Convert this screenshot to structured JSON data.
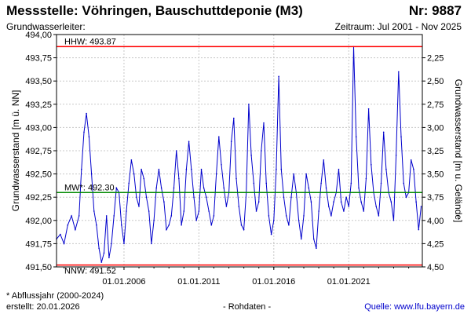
{
  "header": {
    "title": "Messstelle: Vöhringen, Bauschuttdeponie (M3)",
    "number": "Nr: 9887",
    "aquifer_label": "Grundwasserleiter:",
    "period": "Zeitraum: Jul 2001 - Nov 2025"
  },
  "footer": {
    "note": "* Abflussjahr (2000-2024)",
    "created": "erstellt:  20.01.2026",
    "raw": "- Rohdaten -",
    "source_prefix": "Quelle: ",
    "source_link": "www.lfu.bayern.de"
  },
  "colors": {
    "series": "#0000cc",
    "hhw": "#ff0000",
    "nnw": "#ff0000",
    "mw": "#008800",
    "grid": "#c8c8c8"
  },
  "chart_data": {
    "type": "line",
    "xlabel": "",
    "ylabel": "Grundwasserstand [m ü. NN]",
    "ylabel_right": "Grundwasserstand [m u. Gelände]",
    "xlim": [
      "2001-07-01",
      "2025-11-30"
    ],
    "ylim": [
      491.5,
      494.0
    ],
    "y_ticks": [
      "491,50",
      "491,75",
      "492,00",
      "492,25",
      "492,50",
      "492,75",
      "493,00",
      "493,25",
      "493,50",
      "493,75",
      "494,00"
    ],
    "y_ticks_right": [
      "4,50",
      "4,25",
      "4,00",
      "3,75",
      "3,50",
      "3,25",
      "3,00",
      "2,75",
      "2,50",
      "2,25"
    ],
    "x_ticks": [
      {
        "date": "2006-01-01",
        "label": "01.01.2006"
      },
      {
        "date": "2011-01-01",
        "label": "01.01.2011"
      },
      {
        "date": "2016-01-01",
        "label": "01.01.2016"
      },
      {
        "date": "2021-01-01",
        "label": "01.01.2021"
      }
    ],
    "grid": true,
    "reference_lines": [
      {
        "key": "hhw",
        "label": "HHW: 493.87",
        "value": 493.87
      },
      {
        "key": "mw",
        "label": "MW*: 492.30",
        "value": 492.3
      },
      {
        "key": "nnw",
        "label": "NNW: 491.52",
        "value": 491.52
      }
    ],
    "series": [
      {
        "x": [
          "2001-07",
          "2001-10",
          "2002-01",
          "2002-04",
          "2002-07",
          "2002-10",
          "2003-01",
          "2003-03",
          "2003-05",
          "2003-07",
          "2003-09",
          "2003-11",
          "2004-01",
          "2004-03",
          "2004-05",
          "2004-07",
          "2004-09",
          "2004-11",
          "2005-01",
          "2005-03",
          "2005-05",
          "2005-07",
          "2005-09",
          "2005-11",
          "2006-01",
          "2006-03",
          "2006-05",
          "2006-07",
          "2006-09",
          "2006-11",
          "2007-01",
          "2007-03",
          "2007-05",
          "2007-07",
          "2007-09",
          "2007-11",
          "2008-01",
          "2008-03",
          "2008-05",
          "2008-07",
          "2008-09",
          "2008-11",
          "2009-01",
          "2009-03",
          "2009-05",
          "2009-07",
          "2009-09",
          "2009-11",
          "2010-01",
          "2010-03",
          "2010-05",
          "2010-07",
          "2010-09",
          "2010-11",
          "2011-01",
          "2011-03",
          "2011-05",
          "2011-07",
          "2011-09",
          "2011-11",
          "2012-01",
          "2012-03",
          "2012-05",
          "2012-07",
          "2012-09",
          "2012-11",
          "2013-01",
          "2013-03",
          "2013-05",
          "2013-07",
          "2013-09",
          "2013-11",
          "2014-01",
          "2014-03",
          "2014-05",
          "2014-07",
          "2014-09",
          "2014-11",
          "2015-01",
          "2015-03",
          "2015-05",
          "2015-07",
          "2015-09",
          "2015-11",
          "2016-01",
          "2016-03",
          "2016-05",
          "2016-07",
          "2016-09",
          "2016-11",
          "2017-01",
          "2017-03",
          "2017-05",
          "2017-07",
          "2017-09",
          "2017-11",
          "2018-01",
          "2018-03",
          "2018-05",
          "2018-07",
          "2018-09",
          "2018-11",
          "2019-01",
          "2019-03",
          "2019-05",
          "2019-07",
          "2019-09",
          "2019-11",
          "2020-01",
          "2020-03",
          "2020-05",
          "2020-07",
          "2020-09",
          "2020-11",
          "2021-01",
          "2021-03",
          "2021-05",
          "2021-07",
          "2021-09",
          "2021-11",
          "2022-01",
          "2022-03",
          "2022-05",
          "2022-07",
          "2022-09",
          "2022-11",
          "2023-01",
          "2023-03",
          "2023-05",
          "2023-07",
          "2023-09",
          "2023-11",
          "2024-01",
          "2024-03",
          "2024-05",
          "2024-07",
          "2024-09",
          "2024-11",
          "2025-01",
          "2025-03",
          "2025-05",
          "2025-07",
          "2025-09",
          "2025-11"
        ],
        "y": [
          491.8,
          491.85,
          491.75,
          491.95,
          492.05,
          491.9,
          492.05,
          492.55,
          492.95,
          493.15,
          492.9,
          492.5,
          492.1,
          491.95,
          491.7,
          491.55,
          491.65,
          492.05,
          491.6,
          491.75,
          492.05,
          492.35,
          492.3,
          491.95,
          491.75,
          492.1,
          492.4,
          492.65,
          492.5,
          492.25,
          492.15,
          492.55,
          492.45,
          492.25,
          492.1,
          491.75,
          492.0,
          492.35,
          492.55,
          492.35,
          492.2,
          491.9,
          491.95,
          492.05,
          492.35,
          492.75,
          492.45,
          491.95,
          492.1,
          492.55,
          492.85,
          492.55,
          492.25,
          492.0,
          492.1,
          492.55,
          492.35,
          492.25,
          492.1,
          491.95,
          492.05,
          492.5,
          492.9,
          492.6,
          492.35,
          492.15,
          492.3,
          492.85,
          493.1,
          492.45,
          492.15,
          491.95,
          491.9,
          492.3,
          493.25,
          492.7,
          492.4,
          492.1,
          492.2,
          492.75,
          493.05,
          492.4,
          492.05,
          491.85,
          492.0,
          492.55,
          493.55,
          492.55,
          492.25,
          492.05,
          491.95,
          492.25,
          492.5,
          492.3,
          492.0,
          491.8,
          492.05,
          492.5,
          492.35,
          492.2,
          491.8,
          491.7,
          492.1,
          492.4,
          492.65,
          492.35,
          492.15,
          492.05,
          492.2,
          492.3,
          492.55,
          492.2,
          492.1,
          492.25,
          492.15,
          492.4,
          493.87,
          492.9,
          492.35,
          492.2,
          492.1,
          492.45,
          493.2,
          492.6,
          492.3,
          492.15,
          492.05,
          492.4,
          492.95,
          492.55,
          492.3,
          492.2,
          492.0,
          492.7,
          493.6,
          492.9,
          492.4,
          492.25,
          492.3,
          492.65,
          492.55,
          492.2,
          491.9,
          492.15
        ]
      }
    ]
  }
}
